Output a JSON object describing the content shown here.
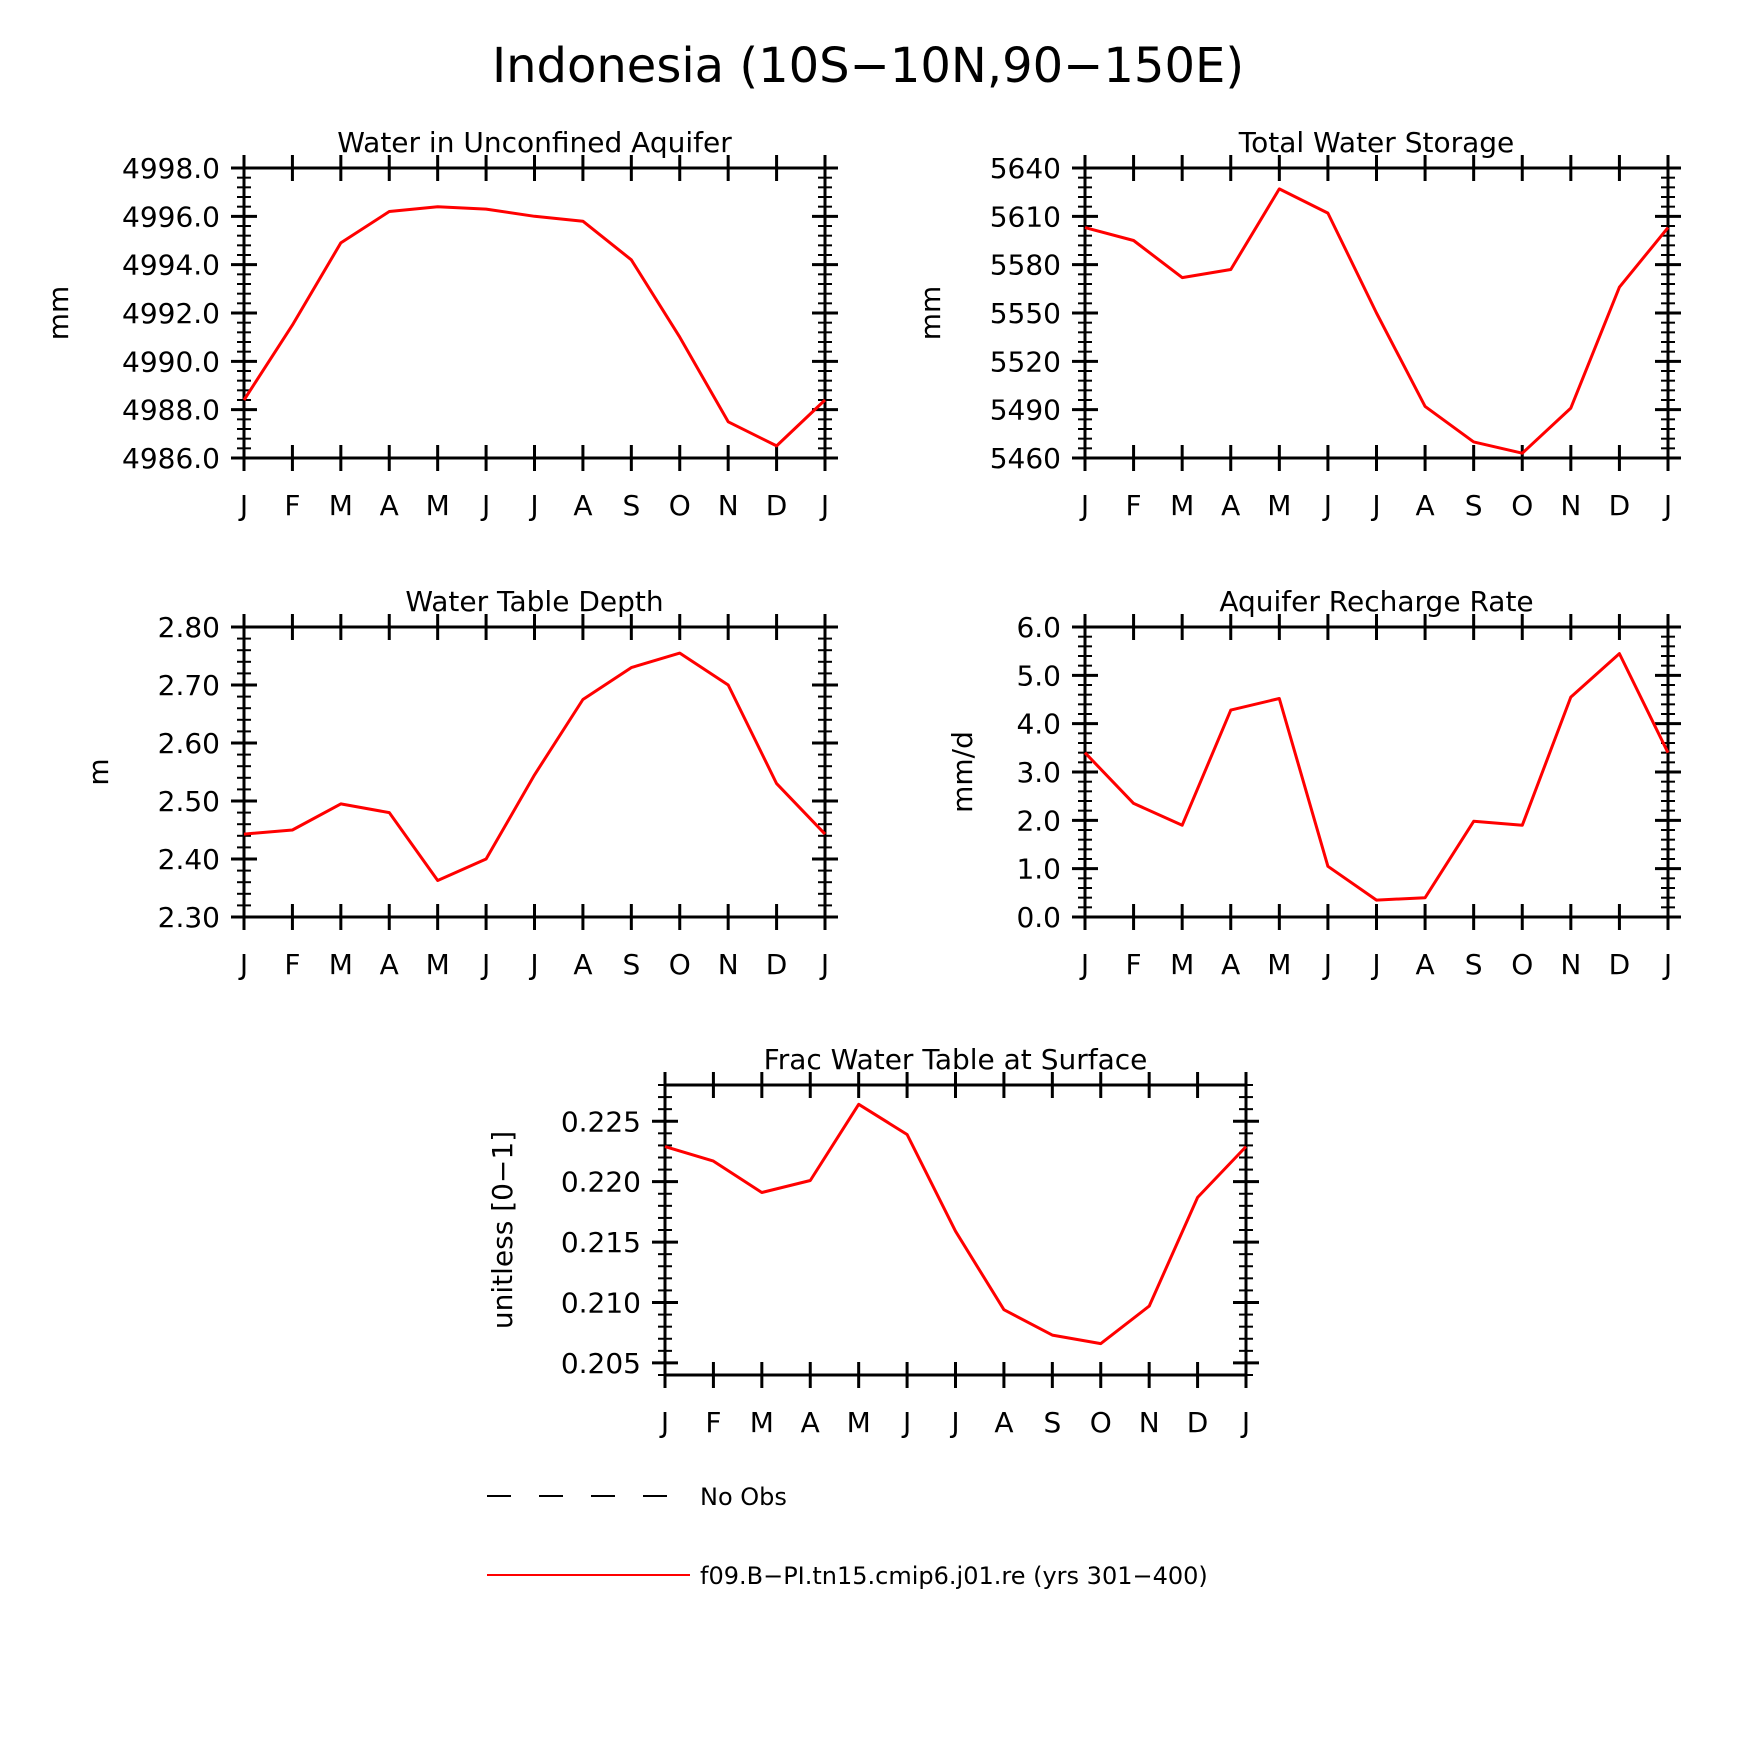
{
  "figure": {
    "title": "Indonesia (10S−10N,90−150E)"
  },
  "legend": {
    "obs_label": "No Obs",
    "model_label": "f09.B−PI.tn15.cmip6.j01.re (yrs 301−400)",
    "obs_color": "#000000",
    "model_color": "#ff0000"
  },
  "chart_data": [
    {
      "type": "line",
      "title": "Water in Unconfined Aquifer",
      "ylabel": "mm",
      "categories": [
        "J",
        "F",
        "M",
        "A",
        "M",
        "J",
        "J",
        "A",
        "S",
        "O",
        "N",
        "D",
        "J"
      ],
      "ylim": [
        4986.0,
        4998.0
      ],
      "yticks": [
        "4986.0",
        "4988.0",
        "4990.0",
        "4992.0",
        "4994.0",
        "4996.0",
        "4998.0"
      ],
      "series": [
        {
          "color": "#ff0000",
          "values": [
            4988.4,
            4991.5,
            4994.9,
            4996.2,
            4996.4,
            4996.3,
            4996.0,
            4995.8,
            4994.2,
            4991.0,
            4987.5,
            4986.5,
            4988.4
          ]
        }
      ]
    },
    {
      "type": "line",
      "title": "Total Water Storage",
      "ylabel": "mm",
      "categories": [
        "J",
        "F",
        "M",
        "A",
        "M",
        "J",
        "J",
        "A",
        "S",
        "O",
        "N",
        "D",
        "J"
      ],
      "ylim": [
        5460,
        5640
      ],
      "yticks": [
        "5460",
        "5490",
        "5520",
        "5550",
        "5580",
        "5610",
        "5640"
      ],
      "series": [
        {
          "color": "#ff0000",
          "values": [
            5603,
            5595,
            5572,
            5577,
            5627,
            5612,
            5550,
            5492,
            5470,
            5463,
            5491,
            5566,
            5603
          ]
        }
      ]
    },
    {
      "type": "line",
      "title": "Water Table Depth",
      "ylabel": "m",
      "categories": [
        "J",
        "F",
        "M",
        "A",
        "M",
        "J",
        "J",
        "A",
        "S",
        "O",
        "N",
        "D",
        "J"
      ],
      "ylim": [
        2.3,
        2.8
      ],
      "yticks": [
        "2.30",
        "2.40",
        "2.50",
        "2.60",
        "2.70",
        "2.80"
      ],
      "series": [
        {
          "color": "#ff0000",
          "values": [
            2.443,
            2.45,
            2.495,
            2.48,
            2.363,
            2.4,
            2.545,
            2.675,
            2.73,
            2.755,
            2.7,
            2.53,
            2.443
          ]
        }
      ]
    },
    {
      "type": "line",
      "title": "Aquifer Recharge Rate",
      "ylabel": "mm/d",
      "categories": [
        "J",
        "F",
        "M",
        "A",
        "M",
        "J",
        "J",
        "A",
        "S",
        "O",
        "N",
        "D",
        "J"
      ],
      "ylim": [
        0.0,
        6.0
      ],
      "yticks": [
        "0.0",
        "1.0",
        "2.0",
        "3.0",
        "4.0",
        "5.0",
        "6.0"
      ],
      "series": [
        {
          "color": "#ff0000",
          "values": [
            3.4,
            2.35,
            1.9,
            4.28,
            4.52,
            1.05,
            0.35,
            0.4,
            1.98,
            1.9,
            4.55,
            5.45,
            3.4
          ]
        }
      ]
    },
    {
      "type": "line",
      "title": "Frac Water Table at Surface",
      "ylabel": "unitless [0−1]",
      "categories": [
        "J",
        "F",
        "M",
        "A",
        "M",
        "J",
        "J",
        "A",
        "S",
        "O",
        "N",
        "D",
        "J"
      ],
      "ylim": [
        0.204,
        0.228
      ],
      "yticks": [
        "0.205",
        "0.210",
        "0.215",
        "0.220",
        "0.225"
      ],
      "series": [
        {
          "color": "#ff0000",
          "values": [
            0.2229,
            0.2217,
            0.2191,
            0.2201,
            0.2264,
            0.2239,
            0.2159,
            0.2094,
            0.2073,
            0.2066,
            0.2097,
            0.2187,
            0.2229
          ]
        }
      ]
    }
  ]
}
